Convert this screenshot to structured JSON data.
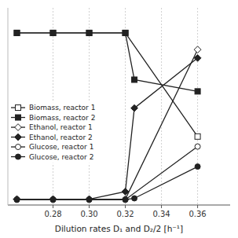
{
  "chart_data": {
    "type": "line",
    "x_label": "Dilution rates D₁ and D₂/2 [h⁻¹]",
    "series": [
      {
        "name": "Biomass, reactor 1",
        "color": "#222222",
        "marker": "square-open",
        "x": [
          0.26,
          0.28,
          0.3,
          0.32,
          0.36
        ],
        "values": [
          10.0,
          10.0,
          10.0,
          10.0,
          3.8
        ]
      },
      {
        "name": "Biomass, reactor 2",
        "color": "#222222",
        "marker": "square",
        "x": [
          0.26,
          0.28,
          0.3,
          0.32,
          0.325,
          0.36
        ],
        "values": [
          10.0,
          10.0,
          10.0,
          10.0,
          7.2,
          6.5
        ]
      },
      {
        "name": "Ethanol, reactor 1",
        "color": "#222222",
        "marker": "diamond-open",
        "x": [
          0.26,
          0.28,
          0.3,
          0.32,
          0.36
        ],
        "values": [
          0.05,
          0.05,
          0.05,
          0.05,
          9.0
        ]
      },
      {
        "name": "Ethanol, reactor 2",
        "color": "#222222",
        "marker": "diamond",
        "x": [
          0.26,
          0.28,
          0.3,
          0.32,
          0.325,
          0.36
        ],
        "values": [
          0.05,
          0.05,
          0.05,
          0.5,
          5.5,
          8.5
        ]
      },
      {
        "name": "Glucose, reactor 1",
        "color": "#222222",
        "marker": "circle-open",
        "x": [
          0.26,
          0.28,
          0.3,
          0.32,
          0.36
        ],
        "values": [
          0.02,
          0.02,
          0.02,
          0.02,
          3.2
        ]
      },
      {
        "name": "Glucose, reactor 2",
        "color": "#222222",
        "marker": "circle",
        "x": [
          0.26,
          0.28,
          0.3,
          0.32,
          0.325,
          0.36
        ],
        "values": [
          0.02,
          0.02,
          0.02,
          0.02,
          0.1,
          2.0
        ]
      }
    ],
    "xlim": [
      0.255,
      0.378
    ],
    "ylim": [
      -0.3,
      11.5
    ],
    "xticks": [
      0.28,
      {
        "value": 0.3,
        "label": "0.30"
      },
      0.32,
      0.34,
      0.36
    ],
    "yticks": [],
    "tick_labels": "x",
    "grid": "x",
    "legend": "lower left"
  }
}
